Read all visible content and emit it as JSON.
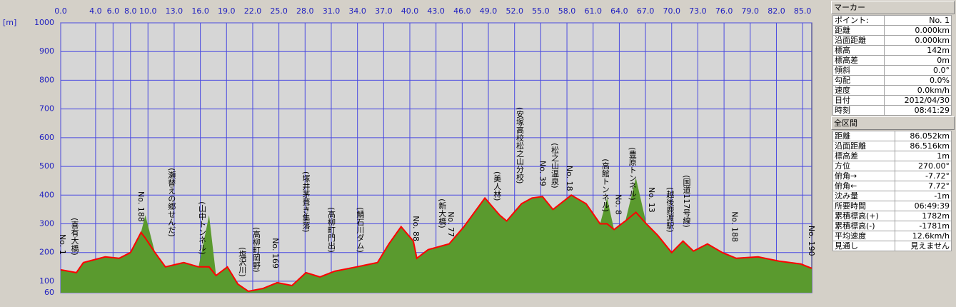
{
  "chart_data": {
    "type": "area",
    "y_label": "[m]",
    "xlim": [
      0,
      86.052
    ],
    "ylim": [
      60,
      1000
    ],
    "grid": true,
    "xticks": [
      {
        "value": 0,
        "label": "0.0"
      },
      {
        "value": 4,
        "label": "4.0"
      },
      {
        "value": 6,
        "label": "6.0"
      },
      {
        "value": 8,
        "label": "8.0"
      },
      {
        "value": 10,
        "label": "10.0"
      },
      {
        "value": 13,
        "label": "13.0"
      },
      {
        "value": 16,
        "label": "16.0"
      },
      {
        "value": 19,
        "label": "19.0"
      },
      {
        "value": 22,
        "label": "22.0"
      },
      {
        "value": 25,
        "label": "25.0"
      },
      {
        "value": 28,
        "label": "28.0"
      },
      {
        "value": 31,
        "label": "31.0"
      },
      {
        "value": 34,
        "label": "34.0"
      },
      {
        "value": 37,
        "label": "37.0"
      },
      {
        "value": 40,
        "label": "40.0"
      },
      {
        "value": 43,
        "label": "43.0"
      },
      {
        "value": 46,
        "label": "46.0"
      },
      {
        "value": 49,
        "label": "49.0"
      },
      {
        "value": 52,
        "label": "52.0"
      },
      {
        "value": 55,
        "label": "55.0"
      },
      {
        "value": 58,
        "label": "58.0"
      },
      {
        "value": 61,
        "label": "61.0"
      },
      {
        "value": 64,
        "label": "64.0"
      },
      {
        "value": 67,
        "label": "67.0"
      },
      {
        "value": 70,
        "label": "70.0"
      },
      {
        "value": 73,
        "label": "73.0"
      },
      {
        "value": 76,
        "label": "76.0"
      },
      {
        "value": 79,
        "label": "79.0"
      },
      {
        "value": 82,
        "label": "82.0"
      },
      {
        "value": 85,
        "label": "85.0"
      }
    ],
    "yticks": [
      60,
      100,
      200,
      300,
      400,
      500,
      600,
      700,
      800,
      900,
      1000
    ],
    "x": [
      0,
      1.8,
      2.6,
      5.1,
      6.7,
      8,
      9.2,
      9.7,
      10.8,
      12,
      14.1,
      15.8,
      17,
      17.8,
      19.1,
      20.3,
      21.5,
      23.2,
      24.8,
      26.5,
      28.1,
      29.7,
      31.4,
      33.9,
      36.3,
      37.6,
      39,
      40.4,
      40.8,
      42.1,
      44.5,
      46.2,
      48.6,
      50.3,
      51.1,
      52.8,
      54,
      55.2,
      56.4,
      58.5,
      60.2,
      61.8,
      62.6,
      63.4,
      64.7,
      65.9,
      67.1,
      68.4,
      70,
      71.3,
      72.5,
      74.1,
      75.8,
      77.4,
      79.9,
      82.3,
      84.8,
      86.05
    ],
    "series": [
      {
        "color": "#5a9a2e",
        "values": [
          140,
          130,
          165,
          185,
          180,
          200,
          270,
          330,
          200,
          150,
          165,
          150,
          330,
          120,
          150,
          90,
          65,
          75,
          95,
          85,
          130,
          115,
          135,
          150,
          165,
          230,
          290,
          240,
          180,
          210,
          230,
          290,
          390,
          330,
          310,
          370,
          390,
          395,
          350,
          400,
          370,
          300,
          390,
          280,
          310,
          460,
          300,
          260,
          200,
          240,
          205,
          230,
          200,
          180,
          185,
          170,
          160,
          145
        ]
      },
      {
        "color": "#ff0000",
        "values": [
          140,
          130,
          165,
          185,
          180,
          200,
          270,
          250,
          200,
          150,
          165,
          150,
          150,
          120,
          150,
          90,
          65,
          75,
          95,
          85,
          130,
          115,
          135,
          150,
          165,
          230,
          290,
          240,
          180,
          210,
          230,
          290,
          390,
          330,
          310,
          370,
          390,
          395,
          350,
          400,
          370,
          300,
          300,
          280,
          310,
          340,
          300,
          260,
          200,
          240,
          205,
          230,
          200,
          180,
          185,
          170,
          160,
          145
        ]
      }
    ],
    "annotations": [
      {
        "text": "No. 1",
        "x": 0.2,
        "y": 264
      },
      {
        "text": "(喜有大橋)",
        "x": 1.6,
        "y": 321
      },
      {
        "text": "No. 188",
        "x": 9.2,
        "y": 413
      },
      {
        "text": "(瀬替えの郷せんだ)",
        "x": 12.7,
        "y": 495
      },
      {
        "text": "(山中トンネル)",
        "x": 16.2,
        "y": 378
      },
      {
        "text": "(塩沢川)",
        "x": 20.8,
        "y": 219
      },
      {
        "text": "(高柳町岡野)",
        "x": 22.4,
        "y": 289
      },
      {
        "text": "No. 169",
        "x": 24.6,
        "y": 251
      },
      {
        "text": "(塚井茅葺き集落)",
        "x": 28.1,
        "y": 483
      },
      {
        "text": "(高柳町門出)",
        "x": 31,
        "y": 358
      },
      {
        "text": "(鯖石川ダム)",
        "x": 34.3,
        "y": 358
      },
      {
        "text": "No. 88",
        "x": 40.7,
        "y": 328
      },
      {
        "text": "(新大橋)",
        "x": 43.7,
        "y": 388
      },
      {
        "text": "No. 77",
        "x": 44.7,
        "y": 343
      },
      {
        "text": "(美人林)",
        "x": 50,
        "y": 483
      },
      {
        "text": "(安塚高校松之山分校)",
        "x": 52.6,
        "y": 707
      },
      {
        "text": "No. 39",
        "x": 55.2,
        "y": 520
      },
      {
        "text": "(松之山温泉)",
        "x": 56.6,
        "y": 582
      },
      {
        "text": "No. 18",
        "x": 58.3,
        "y": 503
      },
      {
        "text": "(高館トンネル)",
        "x": 62.4,
        "y": 527
      },
      {
        "text": "No. 8",
        "x": 63.9,
        "y": 403
      },
      {
        "text": "(豊原トンネル)",
        "x": 65.5,
        "y": 567
      },
      {
        "text": "No. 13",
        "x": 67.7,
        "y": 428
      },
      {
        "text": "(越後鹿渡駅)",
        "x": 69.8,
        "y": 428
      },
      {
        "text": "(国道117号線)",
        "x": 71.7,
        "y": 470
      },
      {
        "text": "No. 188",
        "x": 77.2,
        "y": 343
      },
      {
        "text": "No. 190",
        "x": 86,
        "y": 294
      }
    ]
  },
  "panel": {
    "marker": {
      "title": "マーカー",
      "rows": [
        [
          "ポイント:",
          "No. 1"
        ],
        [
          "距離",
          "0.000km"
        ],
        [
          "沿面距離",
          "0.000km"
        ],
        [
          "標高",
          "142m"
        ],
        [
          "標高差",
          "0m"
        ],
        [
          "傾斜",
          "0.0°"
        ],
        [
          "勾配",
          "0.0%"
        ],
        [
          "速度",
          "0.0km/h"
        ],
        [
          "日付",
          "2012/04/30"
        ],
        [
          "時刻",
          "08:41:29"
        ]
      ]
    },
    "total": {
      "title": "全区間",
      "rows": [
        [
          "距離",
          "86.052km"
        ],
        [
          "沿面距離",
          "86.516km"
        ],
        [
          "標高差",
          "1m"
        ],
        [
          "方位",
          "270.00°"
        ],
        [
          "俯角→",
          "-7.72°"
        ],
        [
          "俯角←",
          "7.72°"
        ],
        [
          "沈み量",
          "-1m"
        ],
        [
          "所要時間",
          "06:49:39"
        ],
        [
          "累積標高(+)",
          "1782m"
        ],
        [
          "累積標高(-)",
          "-1781m"
        ],
        [
          "平均速度",
          "12.6km/h"
        ],
        [
          "見通し",
          "見えません"
        ]
      ]
    }
  }
}
